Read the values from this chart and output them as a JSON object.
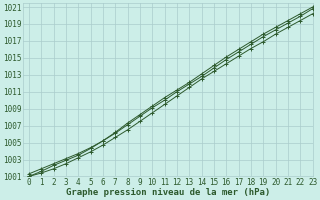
{
  "title": "Graphe pression niveau de la mer (hPa)",
  "background_color": "#cceee8",
  "grid_color": "#aacccc",
  "line_color": "#2d5a2d",
  "xlim": [
    -0.5,
    23
  ],
  "ylim": [
    1001,
    1021.5
  ],
  "xticks": [
    0,
    1,
    2,
    3,
    4,
    5,
    6,
    7,
    8,
    9,
    10,
    11,
    12,
    13,
    14,
    15,
    16,
    17,
    18,
    19,
    20,
    21,
    22,
    23
  ],
  "yticks": [
    1001,
    1003,
    1005,
    1007,
    1009,
    1011,
    1013,
    1015,
    1017,
    1019,
    1021
  ],
  "series1_x": [
    0,
    1,
    2,
    3,
    4,
    5,
    6,
    7,
    8,
    9,
    10,
    11,
    12,
    13,
    14,
    15,
    16,
    17,
    18,
    19,
    20,
    21,
    22,
    23
  ],
  "series1_y": [
    1001.0,
    1001.4,
    1001.9,
    1002.5,
    1003.2,
    1003.9,
    1004.7,
    1005.6,
    1006.5,
    1007.5,
    1008.5,
    1009.5,
    1010.5,
    1011.5,
    1012.5,
    1013.4,
    1014.3,
    1015.2,
    1016.1,
    1016.9,
    1017.8,
    1018.6,
    1019.4,
    1020.2
  ],
  "series2_x": [
    0,
    1,
    2,
    3,
    4,
    5,
    6,
    7,
    8,
    9,
    10,
    11,
    12,
    13,
    14,
    15,
    16,
    17,
    18,
    19,
    20,
    21,
    22,
    23
  ],
  "series2_y": [
    1001.0,
    1001.6,
    1002.3,
    1002.9,
    1003.5,
    1004.3,
    1005.2,
    1006.2,
    1007.3,
    1008.3,
    1009.3,
    1010.3,
    1011.2,
    1012.1,
    1013.1,
    1014.1,
    1015.1,
    1016.0,
    1016.9,
    1017.8,
    1018.6,
    1019.4,
    1020.2,
    1021.0
  ],
  "series3_x": [
    0,
    1,
    2,
    3,
    4,
    5,
    6,
    7,
    8,
    9,
    10,
    11,
    12,
    13,
    14,
    15,
    16,
    17,
    18,
    19,
    20,
    21,
    22,
    23
  ],
  "series3_y": [
    1001.3,
    1001.9,
    1002.5,
    1003.1,
    1003.7,
    1004.4,
    1005.2,
    1006.1,
    1007.1,
    1008.1,
    1009.1,
    1010.0,
    1011.0,
    1011.9,
    1012.8,
    1013.8,
    1014.8,
    1015.7,
    1016.6,
    1017.5,
    1018.3,
    1019.1,
    1019.9,
    1020.8
  ],
  "tick_fontsize": 5.5,
  "xlabel_fontsize": 6.5
}
